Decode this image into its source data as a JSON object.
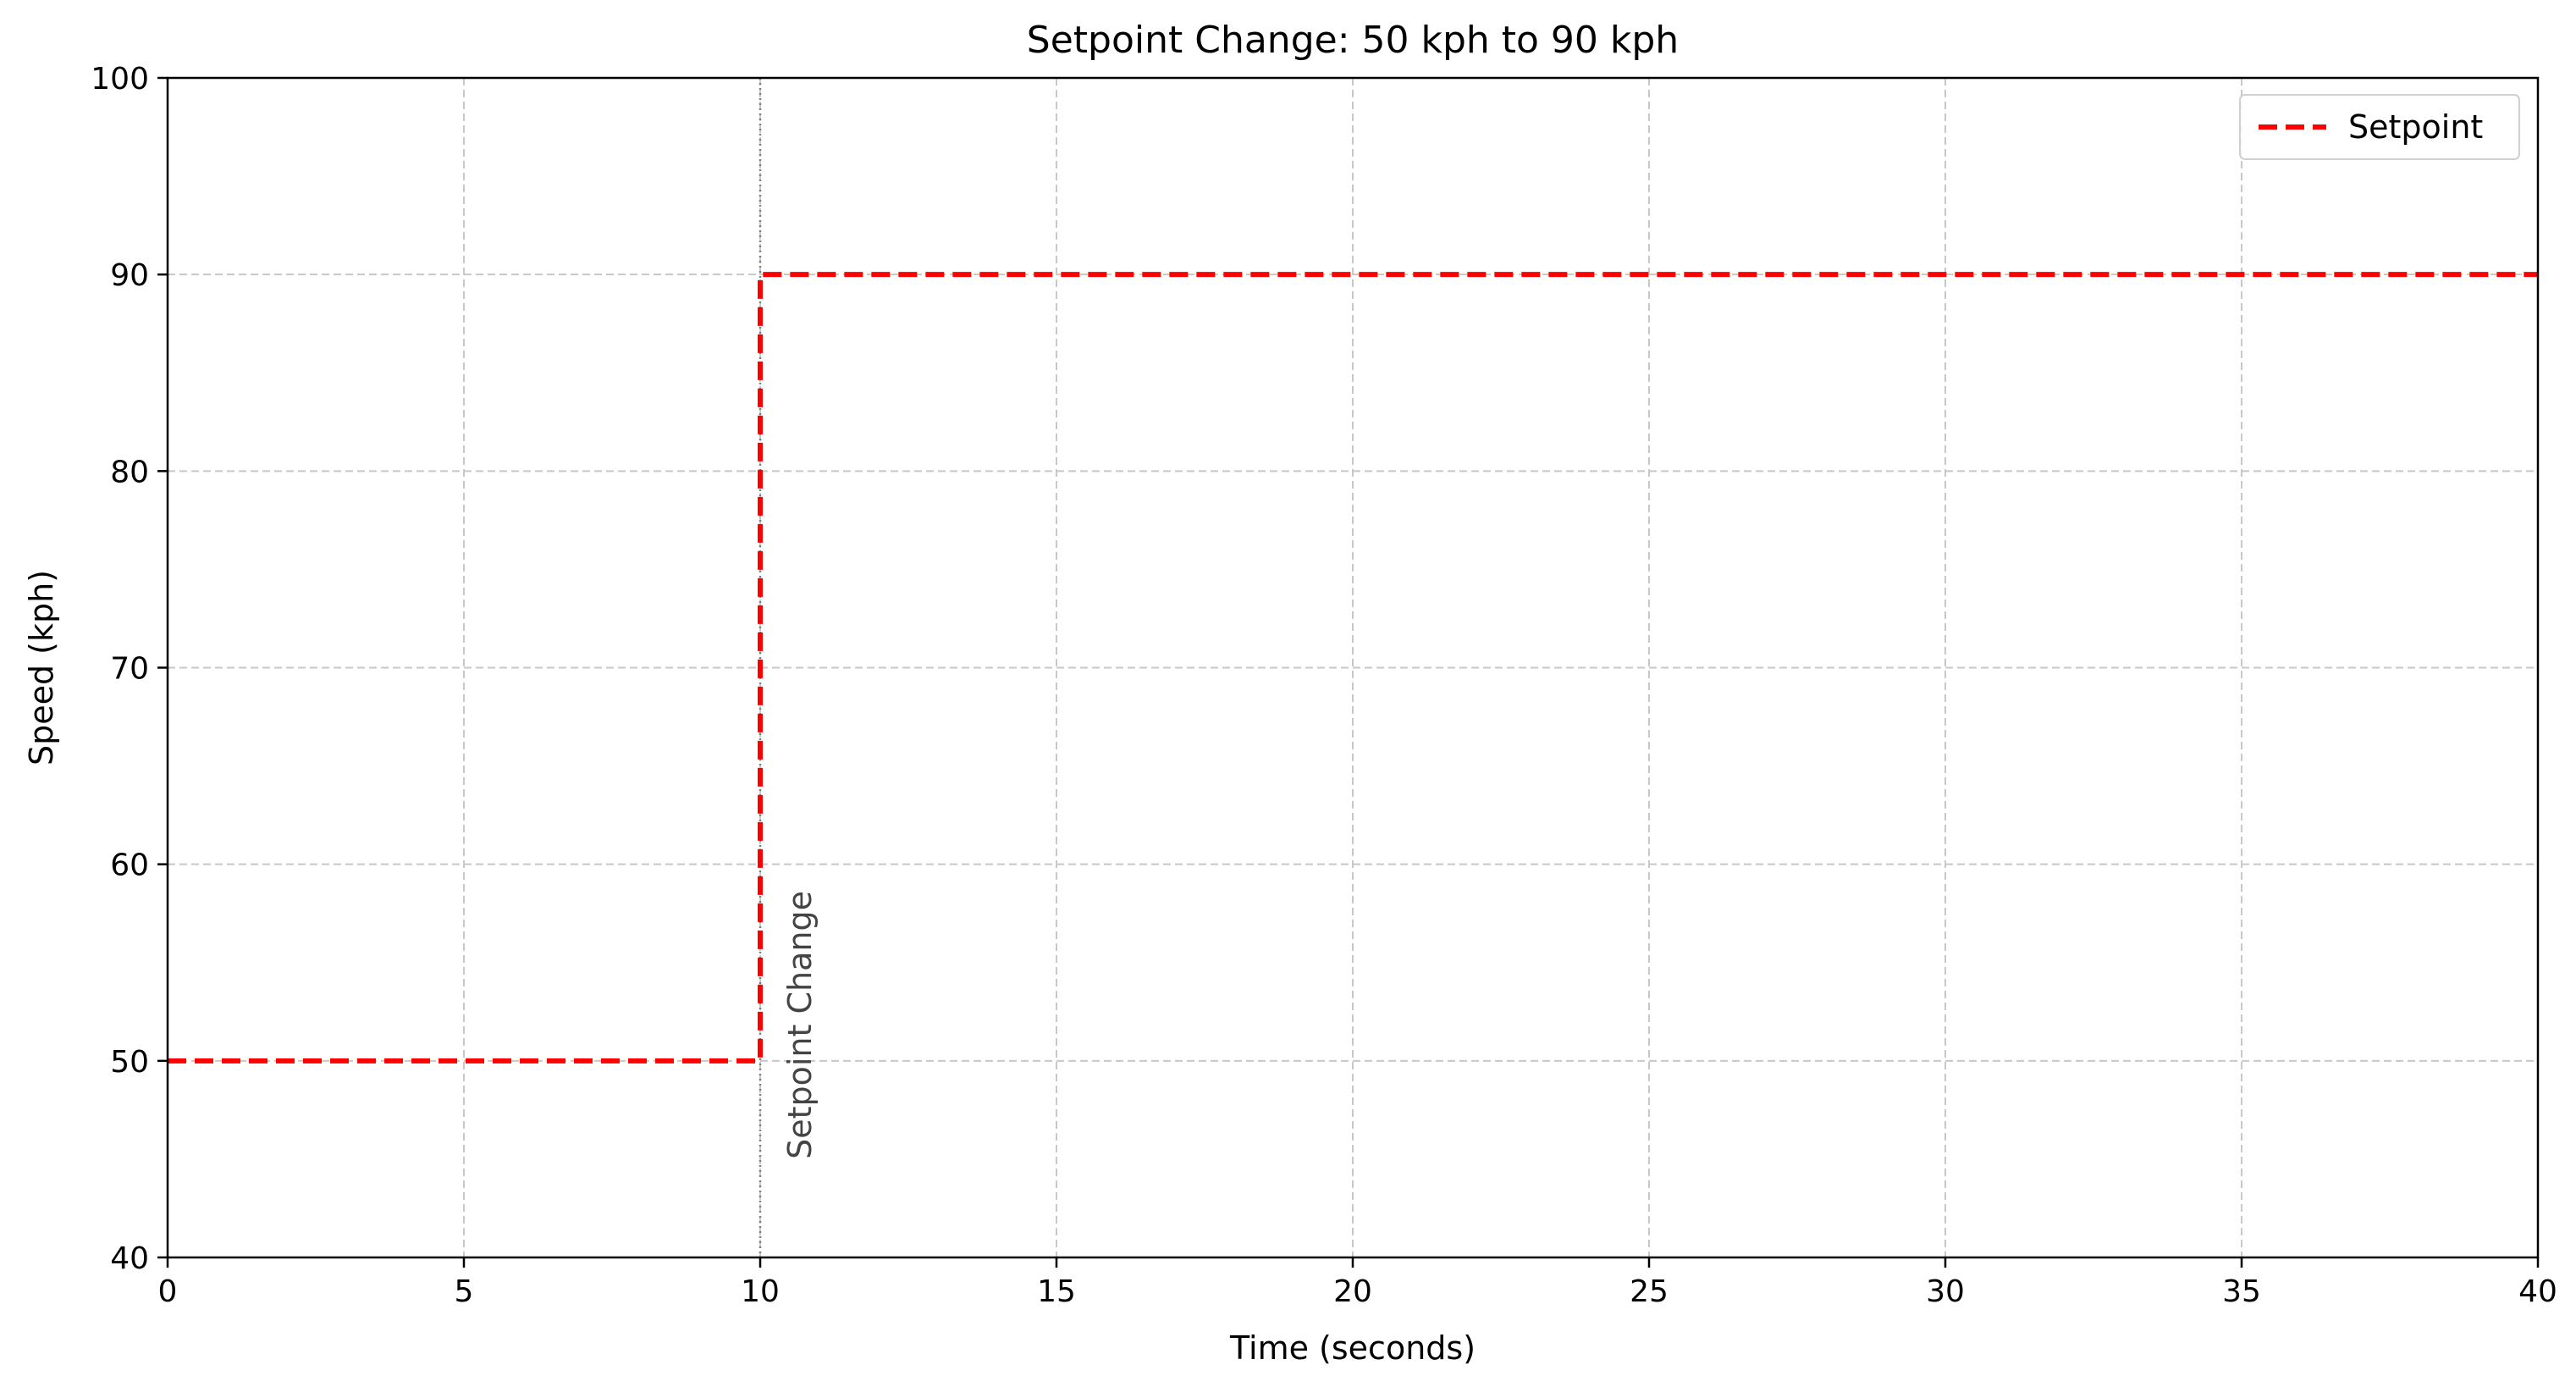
{
  "chart_data": {
    "type": "line",
    "title": "Setpoint Change: 50 kph to 90 kph",
    "xlabel": "Time (seconds)",
    "ylabel": "Speed (kph)",
    "xlim": [
      0,
      40
    ],
    "ylim": [
      40,
      100
    ],
    "xticks": [
      0,
      5,
      10,
      15,
      20,
      25,
      30,
      35,
      40
    ],
    "yticks": [
      40,
      50,
      60,
      70,
      80,
      90,
      100
    ],
    "grid": true,
    "legend_position": "top-right",
    "series": [
      {
        "name": "Setpoint",
        "color": "#ff0000",
        "style": "dashed",
        "x": [
          0,
          10,
          10,
          40
        ],
        "y": [
          50,
          50,
          90,
          90
        ]
      }
    ],
    "annotations": [
      {
        "x": 10,
        "text": "Setpoint Change",
        "line_style": "dotted",
        "color": "#7f7f7f"
      }
    ]
  }
}
